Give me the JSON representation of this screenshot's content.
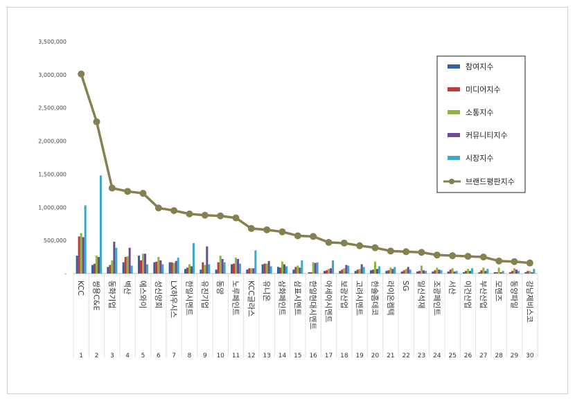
{
  "chart_data": {
    "type": "bar",
    "title": "",
    "xlabel": "",
    "ylabel": "",
    "ylim": [
      0,
      3500000
    ],
    "yticks": [
      "3,500,000",
      "3,000,000",
      "2,500,000",
      "2,000,000",
      "1,500,000",
      "1,000,000",
      "500,000",
      "-"
    ],
    "ranks": [
      "1",
      "2",
      "3",
      "4",
      "5",
      "6",
      "7",
      "8",
      "9",
      "10",
      "11",
      "12",
      "13",
      "14",
      "15",
      "16",
      "17",
      "18",
      "19",
      "20",
      "21",
      "22",
      "23",
      "24",
      "25",
      "26",
      "27",
      "28",
      "29",
      "30"
    ],
    "categories": [
      "KCC",
      "쌍용C&E",
      "동화기업",
      "벽산",
      "에스와이",
      "성신양회",
      "LX하우시스",
      "한일시멘트",
      "유진기업",
      "동양",
      "노루페인트",
      "KCC글라스",
      "유니온",
      "삼화페인트",
      "삼표시멘트",
      "한일현대시멘트",
      "아세아시멘트",
      "보광산업",
      "고려시멘트",
      "한솔홈데코",
      "라이온켐텍",
      "SG",
      "일신석재",
      "조광페인트",
      "서산",
      "이건산업",
      "부산산업",
      "모헨즈",
      "동양파일",
      "강남제비스코"
    ],
    "series": [
      {
        "name": "참여지수",
        "color": "#2e62a8",
        "values": [
          270000,
          130000,
          100000,
          170000,
          270000,
          170000,
          170000,
          70000,
          60000,
          60000,
          140000,
          60000,
          140000,
          100000,
          60000,
          20000,
          40000,
          40000,
          40000,
          50000,
          40000,
          30000,
          30000,
          30000,
          30000,
          20000,
          20000,
          20000,
          20000,
          20000
        ]
      },
      {
        "name": "미디어지수",
        "color": "#c0393b",
        "values": [
          560000,
          150000,
          130000,
          250000,
          200000,
          180000,
          170000,
          90000,
          170000,
          170000,
          150000,
          80000,
          150000,
          90000,
          100000,
          20000,
          50000,
          60000,
          60000,
          60000,
          50000,
          50000,
          40000,
          50000,
          60000,
          40000,
          50000,
          20000,
          40000,
          40000
        ]
      },
      {
        "name": "소통지수",
        "color": "#8db542",
        "values": [
          610000,
          270000,
          200000,
          260000,
          300000,
          250000,
          160000,
          140000,
          130000,
          270000,
          240000,
          80000,
          150000,
          180000,
          120000,
          170000,
          70000,
          80000,
          70000,
          180000,
          90000,
          70000,
          120000,
          90000,
          80000,
          70000,
          90000,
          90000,
          80000,
          40000
        ]
      },
      {
        "name": "커뮤니티지수",
        "color": "#6b4a9a",
        "values": [
          550000,
          250000,
          480000,
          390000,
          300000,
          200000,
          190000,
          110000,
          410000,
          220000,
          220000,
          80000,
          190000,
          140000,
          90000,
          160000,
          80000,
          130000,
          140000,
          70000,
          70000,
          100000,
          50000,
          60000,
          30000,
          40000,
          40000,
          20000,
          60000,
          20000
        ]
      },
      {
        "name": "시장지수",
        "color": "#3ba9c7",
        "values": [
          1030000,
          1480000,
          390000,
          120000,
          140000,
          140000,
          240000,
          460000,
          140000,
          170000,
          150000,
          350000,
          110000,
          110000,
          200000,
          170000,
          200000,
          120000,
          100000,
          110000,
          100000,
          60000,
          40000,
          50000,
          40000,
          80000,
          70000,
          40000,
          40000,
          70000
        ]
      }
    ],
    "line": {
      "name": "브랜드평판지수",
      "color": "#85804f",
      "values": [
        3010000,
        2290000,
        1290000,
        1240000,
        1210000,
        990000,
        950000,
        900000,
        880000,
        870000,
        840000,
        680000,
        660000,
        630000,
        570000,
        560000,
        470000,
        460000,
        420000,
        390000,
        340000,
        330000,
        320000,
        280000,
        270000,
        260000,
        250000,
        190000,
        180000,
        160000
      ]
    },
    "legend_position": "right"
  }
}
